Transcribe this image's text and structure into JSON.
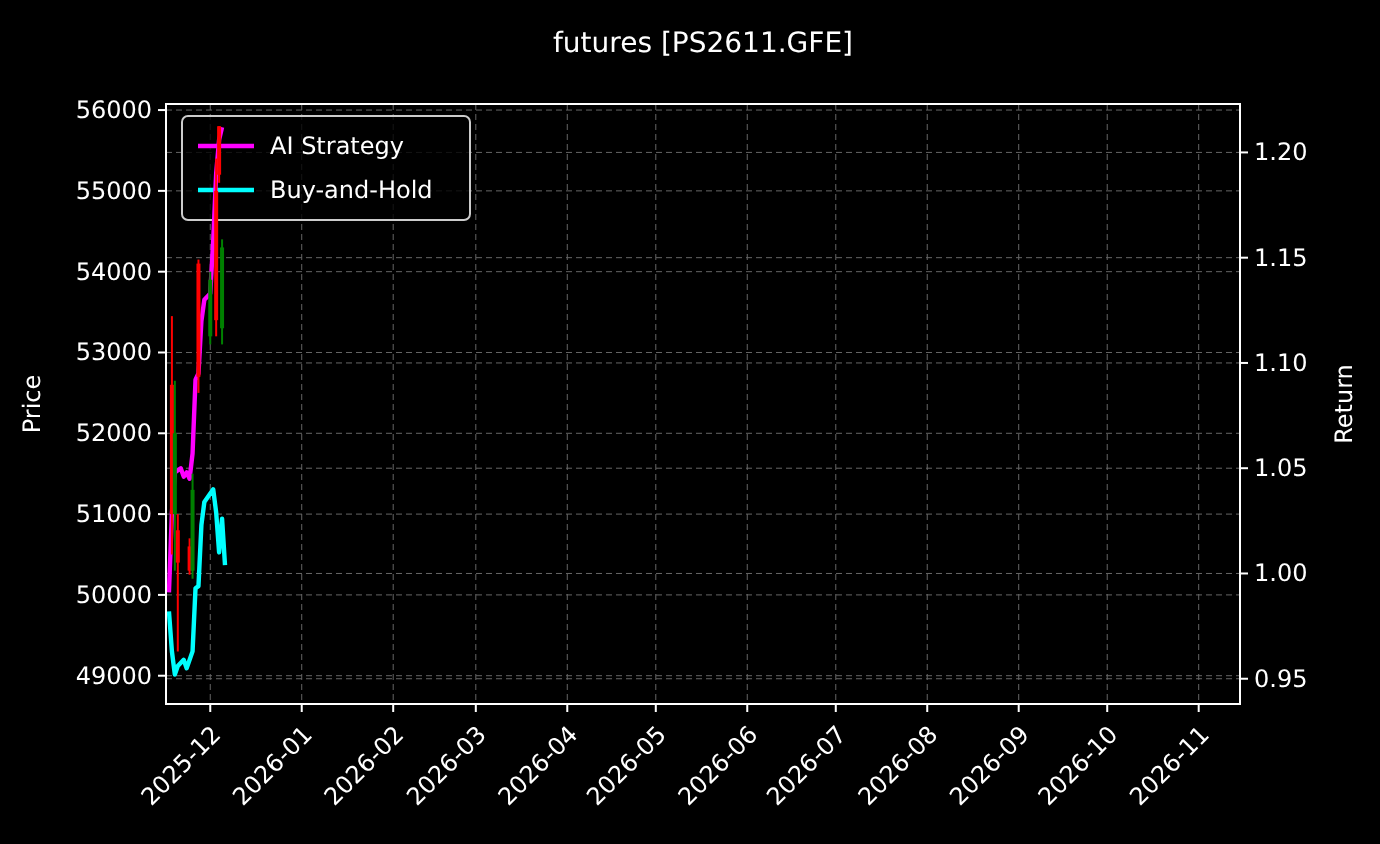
{
  "chart_data": {
    "type": "candlestick",
    "title": "futures [PS2611.GFE]",
    "ylabel": "Price",
    "y2label": "Return",
    "xlim": [
      "2025-11-16",
      "2026-11-15"
    ],
    "xticks": [
      {
        "value": "2025-12-01",
        "label": "2025-12"
      },
      {
        "value": "2026-01-01",
        "label": "2026-01"
      },
      {
        "value": "2026-02-01",
        "label": "2026-02"
      },
      {
        "value": "2026-03-01",
        "label": "2026-03"
      },
      {
        "value": "2026-04-01",
        "label": "2026-04"
      },
      {
        "value": "2026-05-01",
        "label": "2026-05"
      },
      {
        "value": "2026-06-01",
        "label": "2026-06"
      },
      {
        "value": "2026-07-01",
        "label": "2026-07"
      },
      {
        "value": "2026-08-01",
        "label": "2026-08"
      },
      {
        "value": "2026-09-01",
        "label": "2026-09"
      },
      {
        "value": "2026-10-01",
        "label": "2026-10"
      },
      {
        "value": "2026-11-01",
        "label": "2026-11"
      }
    ],
    "ylim": [
      48650,
      56075
    ],
    "yticks": [
      49000,
      50000,
      51000,
      52000,
      53000,
      54000,
      55000,
      56000
    ],
    "y2lim": [
      0.938,
      1.223
    ],
    "y2ticks": [
      0.95,
      {
        "value": 1.0,
        "label": "1.00"
      },
      1.05,
      {
        "value": 1.1,
        "label": "1.10"
      },
      1.15,
      {
        "value": 1.2,
        "label": "1.20"
      }
    ],
    "grid": true,
    "legend": "top left",
    "x": [
      "2025-11-18",
      "2025-11-19",
      "2025-11-20",
      "2025-11-24",
      "2025-11-25",
      "2025-11-27",
      "2025-12-01",
      "2025-12-03",
      "2025-12-04",
      "2025-12-05"
    ],
    "ohlc": [
      [
        52600,
        53450,
        50500,
        51000
      ],
      [
        51000,
        52650,
        50300,
        52000
      ],
      [
        50800,
        51000,
        49300,
        50400
      ],
      [
        50600,
        50700,
        50250,
        50300
      ],
      [
        50300,
        51500,
        50200,
        51300
      ],
      [
        54100,
        54150,
        52500,
        52700
      ],
      [
        53200,
        54000,
        53100,
        53900
      ],
      [
        55000,
        55400,
        53200,
        53400
      ],
      [
        55800,
        55800,
        55100,
        55200
      ],
      [
        53300,
        54400,
        53100,
        54300
      ]
    ],
    "colors": [
      "#ff0000",
      "#008000",
      "#ff0000",
      "#ff0000",
      "#008000",
      "#ff0000",
      "#008000",
      "#ff0000",
      "#ff0000",
      "#008000"
    ],
    "series": [
      {
        "type": "line",
        "name": "AI Strategy",
        "color": "#ff00ff",
        "axis": "y2",
        "x": [
          "2025-11-17",
          "2025-11-18",
          "2025-11-19",
          "2025-11-21",
          "2025-11-22",
          "2025-11-23",
          "2025-11-24",
          "2025-11-25",
          "2025-11-26",
          "2025-11-27",
          "2025-11-28",
          "2025-11-29",
          "2025-12-01",
          "2025-12-02",
          "2025-12-03",
          "2025-12-04",
          "2025-12-05"
        ],
        "values": [
          0.991,
          1.029,
          1.048,
          1.05,
          1.046,
          1.048,
          1.045,
          1.057,
          1.092,
          1.095,
          1.12,
          1.13,
          1.133,
          1.158,
          1.19,
          1.206,
          1.212
        ]
      },
      {
        "type": "line",
        "name": "Buy-and-Hold",
        "color": "#00ffff",
        "axis": "y2",
        "x": [
          "2025-11-17",
          "2025-11-18",
          "2025-11-19",
          "2025-11-20",
          "2025-11-22",
          "2025-11-23",
          "2025-11-25",
          "2025-11-26",
          "2025-11-27",
          "2025-11-28",
          "2025-11-29",
          "2025-12-01",
          "2025-12-02",
          "2025-12-03",
          "2025-12-04",
          "2025-12-05",
          "2025-12-06"
        ],
        "values": [
          0.982,
          0.963,
          0.952,
          0.956,
          0.959,
          0.955,
          0.963,
          0.993,
          0.994,
          1.023,
          1.034,
          1.038,
          1.04,
          1.029,
          1.01,
          1.026,
          1.004
        ]
      }
    ]
  }
}
